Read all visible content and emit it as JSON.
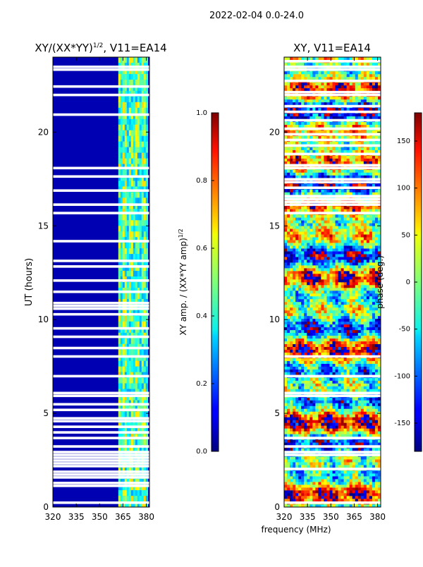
{
  "suptitle": "2022-02-04 0.0-24.0",
  "common_xlabel": "frequency (MHz)",
  "chart_data": [
    {
      "type": "heatmap",
      "id": "amp",
      "title": "XY/(XX*YY)",
      "title_sup": "1/2",
      "title_suffix": ", V11=EA14",
      "ylabel": "UT (hours)",
      "xlabel": "frequency (MHz)",
      "xlim": [
        320,
        382
      ],
      "ylim": [
        0,
        24
      ],
      "xticks": [
        320,
        335,
        350,
        365,
        380
      ],
      "yticks": [
        0,
        5,
        10,
        15,
        20
      ],
      "colorbar": {
        "label": "XY amp. / (XX*YY amp)",
        "label_sup": "1/2",
        "range": [
          0.0,
          1.0
        ],
        "ticks": [
          "0.0",
          "0.2",
          "0.4",
          "0.6",
          "0.8",
          "1.0"
        ],
        "colormap": "jet"
      },
      "flagged_hours": [
        0.2,
        1.1,
        1.3,
        1.5,
        1.7,
        1.9,
        2.1,
        2.3,
        2.5,
        2.7,
        2.9,
        3.3,
        3.6,
        3.9,
        4.2,
        4.5,
        4.8,
        5.1,
        5.4,
        5.9,
        6.0,
        7.0,
        8.0,
        8.5,
        9.0,
        9.5,
        10.2,
        10.8,
        11.5,
        12.1,
        12.8,
        13.1,
        14.2,
        15.6,
        15.7,
        16.1,
        16.9,
        17.7,
        18.1,
        20.9,
        22.0,
        22.4,
        23.3,
        23.5
      ],
      "dense_flag_ranges": [
        [
          1.0,
          3.2
        ],
        [
          4.0,
          5.4
        ],
        [
          10.0,
          11.5
        ]
      ],
      "bad_rfi_band_mhz": [
        362,
        381
      ],
      "description_band_values": "low ~0.05 outside 362-381 MHz, ~0.3-0.7 inside band"
    },
    {
      "type": "heatmap",
      "id": "phase",
      "title": "XY, V11=EA14",
      "xlabel": "frequency (MHz)",
      "xlim": [
        320,
        382
      ],
      "ylim": [
        0,
        24
      ],
      "xticks": [
        320,
        335,
        350,
        365,
        380
      ],
      "yticks": [
        0,
        5,
        10,
        15,
        20
      ],
      "colorbar": {
        "label": "phase (deg.)",
        "range": [
          -180,
          180
        ],
        "ticks": [
          "-150",
          "-100",
          "-50",
          "0",
          "50",
          "100",
          "150"
        ],
        "colormap": "jet"
      },
      "flagged_hours": [
        0.2,
        3.3,
        3.6,
        5.9,
        6.0,
        7.0,
        8.0,
        15.6,
        15.7,
        16.1,
        22.0,
        23.3
      ],
      "dense_flag_ranges": [
        [
          2.0,
          3.2
        ],
        [
          16.0,
          24.0
        ]
      ]
    }
  ]
}
